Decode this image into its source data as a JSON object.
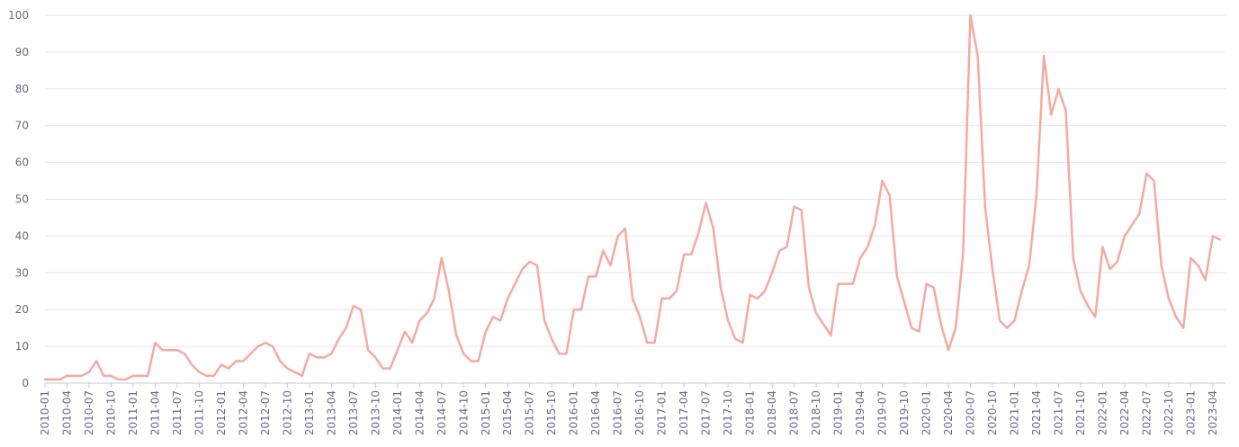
{
  "chart_data": {
    "type": "line",
    "title": "",
    "xlabel": "",
    "ylabel": "",
    "ylim": [
      0,
      100
    ],
    "yticks": [
      0,
      10,
      20,
      30,
      40,
      50,
      60,
      70,
      80,
      90,
      100
    ],
    "grid": true,
    "color": "#f4aaa2",
    "x": [
      "2010-01",
      "2010-02",
      "2010-03",
      "2010-04",
      "2010-05",
      "2010-06",
      "2010-07",
      "2010-08",
      "2010-09",
      "2010-10",
      "2010-11",
      "2010-12",
      "2011-01",
      "2011-02",
      "2011-03",
      "2011-04",
      "2011-05",
      "2011-06",
      "2011-07",
      "2011-08",
      "2011-09",
      "2011-10",
      "2011-11",
      "2011-12",
      "2012-01",
      "2012-02",
      "2012-03",
      "2012-04",
      "2012-05",
      "2012-06",
      "2012-07",
      "2012-08",
      "2012-09",
      "2012-10",
      "2012-11",
      "2012-12",
      "2013-01",
      "2013-02",
      "2013-03",
      "2013-04",
      "2013-05",
      "2013-06",
      "2013-07",
      "2013-08",
      "2013-09",
      "2013-10",
      "2013-11",
      "2013-12",
      "2014-01",
      "2014-02",
      "2014-03",
      "2014-04",
      "2014-05",
      "2014-06",
      "2014-07",
      "2014-08",
      "2014-09",
      "2014-10",
      "2014-11",
      "2014-12",
      "2015-01",
      "2015-02",
      "2015-03",
      "2015-04",
      "2015-05",
      "2015-06",
      "2015-07",
      "2015-08",
      "2015-09",
      "2015-10",
      "2015-11",
      "2015-12",
      "2016-01",
      "2016-02",
      "2016-03",
      "2016-04",
      "2016-05",
      "2016-06",
      "2016-07",
      "2016-08",
      "2016-09",
      "2016-10",
      "2016-11",
      "2016-12",
      "2017-01",
      "2017-02",
      "2017-03",
      "2017-04",
      "2017-05",
      "2017-06",
      "2017-07",
      "2017-08",
      "2017-09",
      "2017-10",
      "2017-11",
      "2017-12",
      "2018-01",
      "2018-02",
      "2018-03",
      "2018-04",
      "2018-05",
      "2018-06",
      "2018-07",
      "2018-08",
      "2018-09",
      "2018-10",
      "2018-11",
      "2018-12",
      "2019-01",
      "2019-02",
      "2019-03",
      "2019-04",
      "2019-05",
      "2019-06",
      "2019-07",
      "2019-08",
      "2019-09",
      "2019-10",
      "2019-11",
      "2019-12",
      "2020-01",
      "2020-02",
      "2020-03",
      "2020-04",
      "2020-05",
      "2020-06",
      "2020-07",
      "2020-08",
      "2020-09",
      "2020-10",
      "2020-11",
      "2020-12",
      "2021-01",
      "2021-02",
      "2021-03",
      "2021-04",
      "2021-05",
      "2021-06",
      "2021-07",
      "2021-08",
      "2021-09",
      "2021-10",
      "2021-11",
      "2021-12",
      "2022-01",
      "2022-02",
      "2022-03",
      "2022-04",
      "2022-05",
      "2022-06",
      "2022-07",
      "2022-08",
      "2022-09",
      "2022-10",
      "2022-11",
      "2022-12",
      "2023-01",
      "2023-02",
      "2023-03",
      "2023-04",
      "2023-05"
    ],
    "xticks": [
      "2010-01",
      "2010-04",
      "2010-07",
      "2010-10",
      "2011-01",
      "2011-04",
      "2011-07",
      "2011-10",
      "2012-01",
      "2012-04",
      "2012-07",
      "2012-10",
      "2013-01",
      "2013-04",
      "2013-07",
      "2013-10",
      "2014-01",
      "2014-04",
      "2014-07",
      "2014-10",
      "2015-01",
      "2015-04",
      "2015-07",
      "2015-10",
      "2016-01",
      "2016-04",
      "2016-07",
      "2016-10",
      "2017-01",
      "2017-04",
      "2017-07",
      "2017-10",
      "2018-01",
      "2018-04",
      "2018-07",
      "2018-10",
      "2019-01",
      "2019-04",
      "2019-07",
      "2019-10",
      "2020-01",
      "2020-04",
      "2020-07",
      "2020-10",
      "2021-01",
      "2021-04",
      "2021-07",
      "2021-10",
      "2022-01",
      "2022-04",
      "2022-07",
      "2022-10",
      "2023-01",
      "2023-04"
    ],
    "values": [
      1,
      1,
      1,
      2,
      2,
      2,
      3,
      6,
      2,
      2,
      1,
      1,
      2,
      2,
      2,
      11,
      9,
      9,
      9,
      8,
      5,
      3,
      2,
      2,
      5,
      4,
      6,
      6,
      8,
      10,
      11,
      10,
      6,
      4,
      3,
      2,
      8,
      7,
      7,
      8,
      12,
      15,
      21,
      20,
      9,
      7,
      4,
      4,
      9,
      14,
      11,
      17,
      19,
      23,
      34,
      25,
      13,
      8,
      6,
      6,
      14,
      18,
      17,
      23,
      27,
      31,
      33,
      32,
      17,
      12,
      8,
      8,
      20,
      20,
      29,
      29,
      36,
      32,
      40,
      42,
      23,
      18,
      11,
      11,
      23,
      23,
      25,
      35,
      35,
      41,
      49,
      42,
      26,
      17,
      12,
      11,
      24,
      23,
      25,
      30,
      36,
      37,
      48,
      47,
      26,
      19,
      16,
      13,
      27,
      27,
      27,
      34,
      37,
      43,
      55,
      51,
      29,
      22,
      15,
      14,
      27,
      26,
      16,
      9,
      15,
      35,
      100,
      89,
      48,
      31,
      17,
      15,
      17,
      25,
      32,
      51,
      89,
      73,
      80,
      74,
      34,
      25,
      21,
      18,
      37,
      31,
      33,
      40,
      43,
      46,
      57,
      55,
      32,
      23,
      18,
      15,
      34,
      32,
      28,
      40,
      39
    ]
  }
}
